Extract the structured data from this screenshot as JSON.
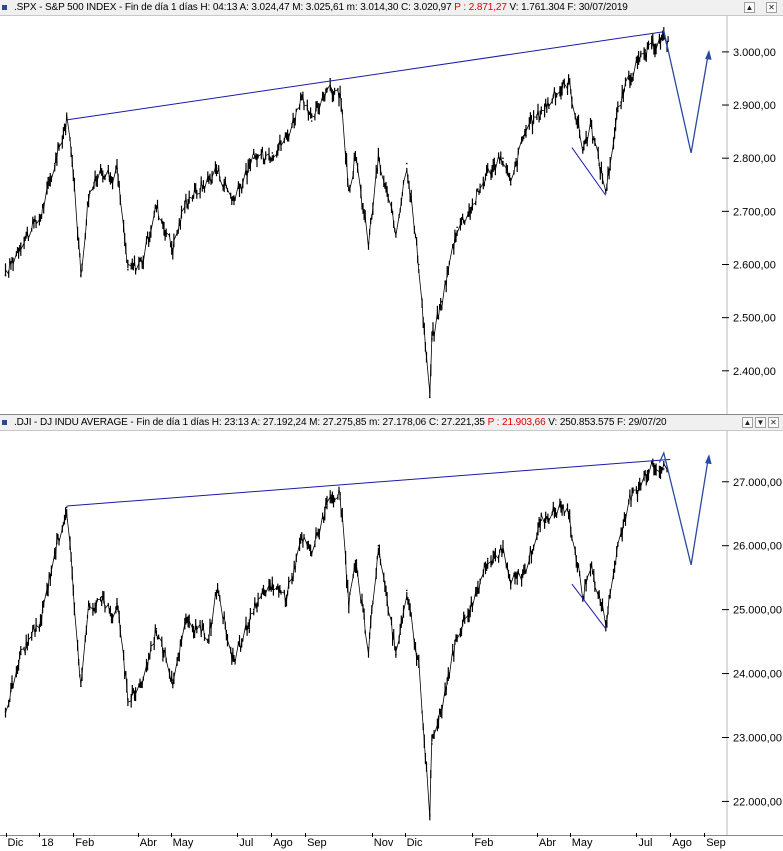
{
  "panels": [
    {
      "name": "spx",
      "header": {
        "prefix": ".SPX - S&P 500 INDEX - Fin de día 1 días  H: 04:13  A: 3.024,47  M: 3.025,61  m: 3.014,30  C: 3.020,97  ",
        "p_label": "P : 2.871,27",
        "suffix": "  V: 1.761.304  F: 30/07/2019"
      },
      "buttons": {
        "up": "▲",
        "close": "✕"
      }
    },
    {
      "name": "dji",
      "header": {
        "prefix": ".DJI - DJ INDU AVERAGE - Fin de día 1 días  H: 23:13  A: 27.192,24  M: 27.275,85  m: 27.178,06  C: 27.221,35  ",
        "p_label": "P : 21.903,66",
        "suffix": "  V: 250.853.575  F: 29/07/20"
      },
      "buttons": {
        "up": "▲",
        "down": "▼",
        "close": "✕"
      }
    }
  ],
  "colors": {
    "price": "#000000",
    "trendline": "#1a1aa8",
    "arrow": "#2a4aa0"
  },
  "chart_data": [
    {
      "type": "line",
      "title": ".SPX - S&P 500 INDEX",
      "ylim": [
        2330,
        3060
      ],
      "y_ticks": [
        2400,
        2500,
        2600,
        2700,
        2800,
        2900,
        3000
      ],
      "y_tick_labels": [
        "2.400,00",
        "2.500,00",
        "2.600,00",
        "2.700,00",
        "2.800,00",
        "2.900,00",
        "3.000,00"
      ],
      "x": [
        "2017-12-01",
        "2017-12-15",
        "2018-01-02",
        "2018-01-15",
        "2018-01-26",
        "2018-02-02",
        "2018-02-08",
        "2018-02-15",
        "2018-02-27",
        "2018-03-08",
        "2018-03-13",
        "2018-03-23",
        "2018-04-06",
        "2018-04-18",
        "2018-05-03",
        "2018-05-15",
        "2018-06-05",
        "2018-06-12",
        "2018-06-28",
        "2018-07-16",
        "2018-08-02",
        "2018-08-15",
        "2018-08-29",
        "2018-09-07",
        "2018-09-20",
        "2018-10-03",
        "2018-10-11",
        "2018-10-17",
        "2018-10-29",
        "2018-11-07",
        "2018-11-23",
        "2018-12-03",
        "2018-12-14",
        "2018-12-24",
        "2018-12-26",
        "2019-01-04",
        "2019-01-18",
        "2019-02-01",
        "2019-02-15",
        "2019-03-01",
        "2019-03-08",
        "2019-03-21",
        "2019-04-05",
        "2019-04-23",
        "2019-04-30",
        "2019-05-13",
        "2019-05-20",
        "2019-06-03",
        "2019-06-14",
        "2019-06-24",
        "2019-07-03",
        "2019-07-15",
        "2019-07-26",
        "2019-07-30"
      ],
      "values": [
        2580,
        2640,
        2690,
        2790,
        2872,
        2760,
        2580,
        2730,
        2780,
        2760,
        2780,
        2590,
        2610,
        2710,
        2630,
        2720,
        2760,
        2780,
        2720,
        2800,
        2810,
        2840,
        2910,
        2870,
        2930,
        2920,
        2740,
        2800,
        2640,
        2800,
        2660,
        2790,
        2600,
        2350,
        2460,
        2530,
        2670,
        2710,
        2775,
        2800,
        2750,
        2850,
        2890,
        2930,
        2945,
        2820,
        2860,
        2740,
        2890,
        2950,
        2980,
        3010,
        3025,
        3020
      ],
      "annotations": {
        "trendline": {
          "from": [
            "2018-01-26",
            2872
          ],
          "to": [
            "2019-07-26",
            3038
          ]
        },
        "path": [
          [
            "2019-05-03",
            2820
          ],
          [
            "2019-06-03",
            2730
          ]
        ],
        "forecast": [
          [
            "2019-07-26",
            3040
          ],
          [
            "2019-08-20",
            2810
          ],
          [
            "2019-09-05",
            3000
          ]
        ]
      }
    },
    {
      "type": "line",
      "title": ".DJI - DJ INDU AVERAGE",
      "ylim": [
        21600,
        27700
      ],
      "y_ticks": [
        22000,
        23000,
        24000,
        25000,
        26000,
        27000
      ],
      "y_tick_labels": [
        "22.000,00",
        "23.000,00",
        "24.000,00",
        "25.000,00",
        "26.000,00",
        "27.000,00"
      ],
      "x": [
        "2017-12-01",
        "2017-12-15",
        "2018-01-02",
        "2018-01-15",
        "2018-01-26",
        "2018-02-02",
        "2018-02-08",
        "2018-02-15",
        "2018-02-27",
        "2018-03-08",
        "2018-03-13",
        "2018-03-23",
        "2018-04-06",
        "2018-04-18",
        "2018-05-03",
        "2018-05-15",
        "2018-06-05",
        "2018-06-12",
        "2018-06-28",
        "2018-07-16",
        "2018-08-02",
        "2018-08-15",
        "2018-08-29",
        "2018-09-07",
        "2018-09-20",
        "2018-10-03",
        "2018-10-11",
        "2018-10-17",
        "2018-10-29",
        "2018-11-07",
        "2018-11-23",
        "2018-12-03",
        "2018-12-14",
        "2018-12-24",
        "2018-12-26",
        "2019-01-04",
        "2019-01-18",
        "2019-02-01",
        "2019-02-15",
        "2019-03-01",
        "2019-03-08",
        "2019-03-21",
        "2019-04-05",
        "2019-04-23",
        "2019-04-30",
        "2019-05-13",
        "2019-05-20",
        "2019-06-03",
        "2019-06-14",
        "2019-06-24",
        "2019-07-03",
        "2019-07-15",
        "2019-07-26",
        "2019-07-29"
      ],
      "values": [
        23400,
        24300,
        24800,
        25900,
        26600,
        25100,
        23800,
        25000,
        25200,
        24900,
        25100,
        23600,
        23900,
        24700,
        23900,
        24800,
        24600,
        25300,
        24200,
        25000,
        25400,
        25200,
        26100,
        25900,
        26600,
        26800,
        25100,
        25700,
        24400,
        26000,
        24300,
        25300,
        24100,
        21800,
        22900,
        23500,
        24600,
        25100,
        25800,
        25900,
        25400,
        25600,
        26400,
        26600,
        26500,
        25200,
        25700,
        24800,
        26000,
        26700,
        26900,
        27300,
        27200,
        27221
      ],
      "annotations": {
        "trendline": {
          "from": [
            "2018-01-26",
            26620
          ],
          "to": [
            "2019-08-01",
            27350
          ]
        },
        "path": [
          [
            "2019-05-03",
            25400
          ],
          [
            "2019-06-03",
            24700
          ]
        ],
        "forecast": [
          [
            "2019-07-22",
            27300
          ],
          [
            "2019-07-26",
            27450
          ],
          [
            "2019-08-20",
            25700
          ],
          [
            "2019-09-05",
            27400
          ]
        ]
      }
    }
  ],
  "x_axis": {
    "labels": [
      {
        "text": "Dic",
        "date": "2017-12-01"
      },
      {
        "text": "18",
        "date": "2018-01-01"
      },
      {
        "text": "Feb",
        "date": "2018-02-01"
      },
      {
        "text": "Abr",
        "date": "2018-04-01"
      },
      {
        "text": "May",
        "date": "2018-05-01"
      },
      {
        "text": "Jul",
        "date": "2018-07-01"
      },
      {
        "text": "Ago",
        "date": "2018-08-01"
      },
      {
        "text": "Sep",
        "date": "2018-09-01"
      },
      {
        "text": "Nov",
        "date": "2018-11-01"
      },
      {
        "text": "Dic",
        "date": "2018-12-01"
      },
      {
        "text": "Feb",
        "date": "2019-02-01"
      },
      {
        "text": "Abr",
        "date": "2019-04-01"
      },
      {
        "text": "May",
        "date": "2019-05-01"
      },
      {
        "text": "Jul",
        "date": "2019-07-01"
      },
      {
        "text": "Ago",
        "date": "2019-08-01"
      },
      {
        "text": "Sep",
        "date": "2019-09-01"
      }
    ]
  }
}
